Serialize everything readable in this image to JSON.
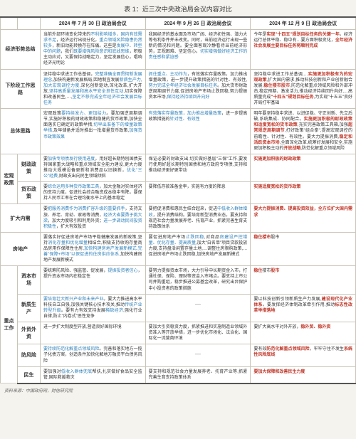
{
  "title": "表 1：近三次中央政治局会议内容对比",
  "footer": "资料来源：中国政府网，财信研究院",
  "head": {
    "blank1": "",
    "blank2": "",
    "c1": "2024 年 7 月 30 日\n政治局会议",
    "c2": "2024 年 9 月 26 日\n政治局会议",
    "c3": "2024 年 12 月 9 日\n政治局会议"
  },
  "rows": [
    {
      "cat": "经济形势总结",
      "sub": "",
      "cells": [
        "当前外部环境变化带来的<i>不利影响增多，国内有效需求不足</i>，经济运行出现分化，<i>重点领域风险隐患仍然较多</i>，新旧动能转换存在阵痛。这些是<i>发展中、转型中的问题</i>，我们<i>既要增强风险意识和底线思维</i>，积极主动应对，又要保持战略定力，坚定发展信心，唱响经济光明论",
        "我国经济的基本面及市场广阔、经济初性强、潜力大等有利条件并未改变。同时，当前经济运行出现一些新的情况和问题。要全面客观冷静看待当前经济形势，正视困难、坚定信心。<i>切实增强做好经济工作的责任感和紧迫感</i>",
        "今年是<b>实现\"十四五\"规划目标任务的关键一年</b>。经济运行总体平稳、稳中有…要方面积极变化，<b>全年经济社会发展主要目标任务将顺利完成</b>"
      ]
    },
    {
      "cat": "下阶段工作思路",
      "sub": "",
      "cells": [
        "坚持稳中求进工作总基调，<i>完整准确全面贯彻新发展理念</i>,加快构建新发展格局,因地制宜发展<i>新质生产力</i>,<i>加大宏观调控力度</i>,深化创新驱动,深化改革,扩大开放,<i>坚持高质量发展和高水平安全良性互动</i>,切实保障和改善民生,…,<i>坚定不移完成全年经济社会发展目标任务</i>",
        "<i>抓住重点、主动作为</i>，有效落实存量政策，加力推出增量政策，进一步提升政策措施的针对性、有效性,<i>努力完成全年经济社会发展目标任务</i>。加大货币财政逆周期调节力度,促进房地产市场止跌回稳,努力提振资本市场,<i>保持经济持续回升向好</i>",
        "坚持稳中求进工作总基调,…<b>实施更加积极有为的宏观政策</b>,扩大国内需求,推动科技创新和产业创新融合发展,<b>稳住楼市股市</b>,防范化解重点领域风险和外部冲击,稳定预期、激发活力,推动经济持续回升向好,…高质量完成<b>\"十四五\"规划目标任务</b>,为实现\"十五五\"良好开局打牢基础"
      ]
    },
    {
      "cat": "总体思路",
      "sub": "",
      "cells": [
        "宏观政策<i>要持续发力、更加给力</i>。要加强逆周期调节,实施好积极的财政政策和稳健的货币政策,加快全面落实已确定的政策举措,<i>切早出准备下的增量政策举措</i>,及早储备并适时推出一批增量货币政策,<i>加强货币政策效果</i>",
        "<i>有效落实存量政策，加力推出增量政策</i>，进一步提高政策措施的<i>针对性、有效性</i>",
        "明年要坚持稳中求进、以进促稳、守正创新、先立后破,系统集成、协同配合。<b>实施更加积极的财政政策和适度宽松的货币政策</b>,充实完善政策工具箱,加强<b>超常规逆周期调节</b>,打好政策\"组合拳\",提高宏观调控的前瞻性、针对性、有效性。要大力提振消费,<b>稳定和活跃资本市场</b>,全面深化改革,统筹好发展和安全,实施更加积极主动的<b>开放战略</b>,防范化解重点领域风险"
      ]
    },
    {
      "cat": "宏观政策",
      "sub": "财政政策",
      "cells": [
        "要<i>加快专项债发行使用进度</i>，用好超长期特别国债支持国家重大战略和重点领域安全能力建设,更大力度推动大规模设备更新和消费品以旧换新，<i>优化\"三公\"经费</i>,财政支出向民生领域倾斜",
        "保证必要的财政支出,切实做好基层\"三保\"工作,要发行使用好超长期特别国债和地方政府专项债,支持和推动经济更好更带动",
        "<b>实施更加积极的财政政策</b>"
      ]
    },
    {
      "cat": "",
      "sub": "货币政策",
      "cells": [
        "要<i>综合运用多种货币政策工具</i>，加大金融对实体经济的支持力度，促进社会综合融资成本稳中有降。要保持人民币汇率在合理均衡水平上的基本稳定",
        "要降低存款准备金率，实施有力度的降息",
        "<b>实施适度宽松的货币政策</b>"
      ]
    },
    {
      "cat": "扩大内需",
      "sub": "",
      "cells": [
        "要<i>把服务消费作为消费扩容升级的重要抓手</i>，支持文旅、养老、育幼、家政等消费，<i>经济大省要勇于挑大梁</i>，加大力度吸引和利用外资；<i>进一步调动民间投资积极性</i>，扩大有效投资",
        "要把促消费和惠民生结合起来，促进<i>中低收入群体增收</i>，提升消费结构。要培育新型消费业态。要支持和规范社会力量发展养老、托育产业，抓紧完善生育支持政策体系",
        "<b>要大力提振消费、提高投资效益，全方位扩大国内需求</b>"
      ]
    },
    {
      "cat": "房地产",
      "sub": "",
      "cells": [
        "要落实好促进房地产市场平稳健康发展的新政策,坚持<i>消化存量和优化增量</i>相结合,积极支持收购存量商品房用作保障性住房,<i>加快构建房地产发展新模式,完善\"保障+市场\"以保促进的住房供应体系</i>,加快构建房地产发展新模式",
        "要促进房地产市场<i>止跌回稳</i>,对商品<i>房建设严控增量、优化存量、提高质量</i>,加大\"白名单\"项目贷款投放力度,支持盘活闲置存量土地,…调整住房限购政策,…促进房地产市场止跌回稳,加快房地产发展新模式",
        "<b>稳住楼市</b>股市"
      ]
    },
    {
      "cat": "重点工作",
      "sub": "资本市场",
      "cells": [
        "要统筹防风险、强监管、促发展，<i>提振投资者信心</i>，提升资本市场内在稳定性",
        "要努力提振资本市场，大力引导中长期资金入市，打通社保、保险、理财等资金入市堵点。要支持上市公司并购重组，稳步推进公募基金改革，研究出台保护中小投资者的政策措施",
        "<b>稳住</b>楼市<b>股市</b>"
      ]
    },
    {
      "cat": "",
      "sub": "新质生产",
      "cells": [
        "<i>要培育壮大新兴产业和未来产业</i>。要大力推进高水平科技自立自强,加强关键核心技术攻关,推动<i>传统产业转型升级</i>。要有力有效支持发展<i>稀缺经济</i>,强化行业自律,防止\"内卷式\"恶性竞争",
        "—",
        "要以科技创新引领新质生产力发展,<b>建设现代化产业体系</b>。要发挥经济体制改革牵引作用,推动<b>标志性改革举措落地</b>"
      ]
    },
    {
      "cat": "",
      "sub": "外贸外资",
      "cells": [
        "进一步扩大制度型开放,营造良好国际环境",
        "要加大引资稳资力度，抓紧推进和实施制造业领域外资准入等开放举措，进一步优化市场化、法治化、国际化一流营商环境",
        "要扩大高水平对外开放，<b>稳外贸、稳外资</b>"
      ]
    },
    {
      "cat": "",
      "sub": "防风险",
      "cells": [
        "<i>要持续防范化解重点领域风险</i>。完善和落实地方一揽子化债方案，创造条件加快化解地方融资平台债务风险",
        "—",
        "要有效<b>防范化解重点领域风险</b>，牢牢守住不发生<b>系统性风险底线</b>"
      ]
    },
    {
      "cat": "",
      "sub": "民生",
      "cells": [
        "要加强对<i>低收入群体兜底</i>帮扶,扎实做好食品安全监管,国际救援救灾",
        "要支持和规范社会力量发展养老、托育产业等,抓紧完善生育支持政策体系",
        "<b>要加大保障和改善民生力度</b>"
      ]
    }
  ]
}
